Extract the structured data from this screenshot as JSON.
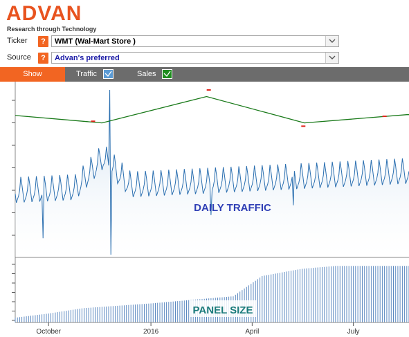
{
  "brand": {
    "name": "ADVAN",
    "tagline": "Research through Technology",
    "color": "#e8531f"
  },
  "form": {
    "ticker": {
      "label": "Ticker",
      "help": "?",
      "value": "WMT (Wal-Mart Store )",
      "value_color": "#000000"
    },
    "source": {
      "label": "Source",
      "help": "?",
      "value": "Advan's preferred",
      "value_color": "#1a1aa6"
    }
  },
  "show_bar": {
    "show_label": "Show",
    "traffic": {
      "label": "Traffic",
      "checked": true,
      "color": "#5b9bd5"
    },
    "sales": {
      "label": "Sales",
      "checked": true,
      "color": "#1e8c1e"
    }
  },
  "chart_data": {
    "type": "line",
    "annotations": [
      "DAILY TRAFFIC",
      "PANEL SIZE"
    ],
    "x_tick_labels": [
      "October",
      "2016",
      "April",
      "July"
    ],
    "x_tick_dates": [
      "2015-10-01",
      "2016-01-01",
      "2016-04-01",
      "2016-07-01"
    ],
    "x_range": [
      "2015-09-01",
      "2016-08-20"
    ],
    "y_axis": "unlabeled",
    "series": [
      {
        "color": "#2b6fb0",
        "kind": "line-with-fill",
        "panel": "top",
        "approx_level": 0.37,
        "weekly_swing": 0.1,
        "trend_per_year": 0.12,
        "holiday_peak": {
          "date": "2015-11-27",
          "value": 1.0
        },
        "dips": [
          {
            "date": "2015-09-26",
            "value": 0.1
          },
          {
            "date": "2015-11-26",
            "value": 0.0
          },
          {
            "date": "2016-02-24",
            "value": 0.24
          },
          {
            "date": "2016-05-08",
            "value": 0.3
          }
        ]
      },
      {
        "color": "#1a7a1a",
        "kind": "line",
        "panel": "top",
        "points": [
          {
            "x": "2015-09-01",
            "y": 0.845
          },
          {
            "x": "2015-11-18",
            "y": 0.8
          },
          {
            "x": "2016-02-20",
            "y": 0.96
          },
          {
            "x": "2016-05-18",
            "y": 0.8
          },
          {
            "x": "2016-08-18",
            "y": 0.85
          },
          {
            "x": "2016-08-20",
            "y": 0.85
          }
        ],
        "markers": [
          {
            "x": "2015-11-10",
            "y": 0.81
          },
          {
            "x": "2016-02-22",
            "y": 1.0
          },
          {
            "x": "2016-05-17",
            "y": 0.78
          },
          {
            "x": "2016-07-29",
            "y": 0.84
          }
        ],
        "marker_color": "#e0251b"
      },
      {
        "color": "#5b88c0",
        "kind": "bars",
        "panel": "bottom",
        "levels": [
          {
            "x": "2015-09-01",
            "y": 0.08
          },
          {
            "x": "2015-10-01",
            "y": 0.15
          },
          {
            "x": "2015-11-01",
            "y": 0.24
          },
          {
            "x": "2016-01-01",
            "y": 0.32
          },
          {
            "x": "2016-03-15",
            "y": 0.44
          },
          {
            "x": "2016-04-10",
            "y": 0.78
          },
          {
            "x": "2016-05-15",
            "y": 0.9
          },
          {
            "x": "2016-06-15",
            "y": 0.95
          },
          {
            "x": "2016-08-20",
            "y": 0.95
          }
        ]
      }
    ]
  }
}
